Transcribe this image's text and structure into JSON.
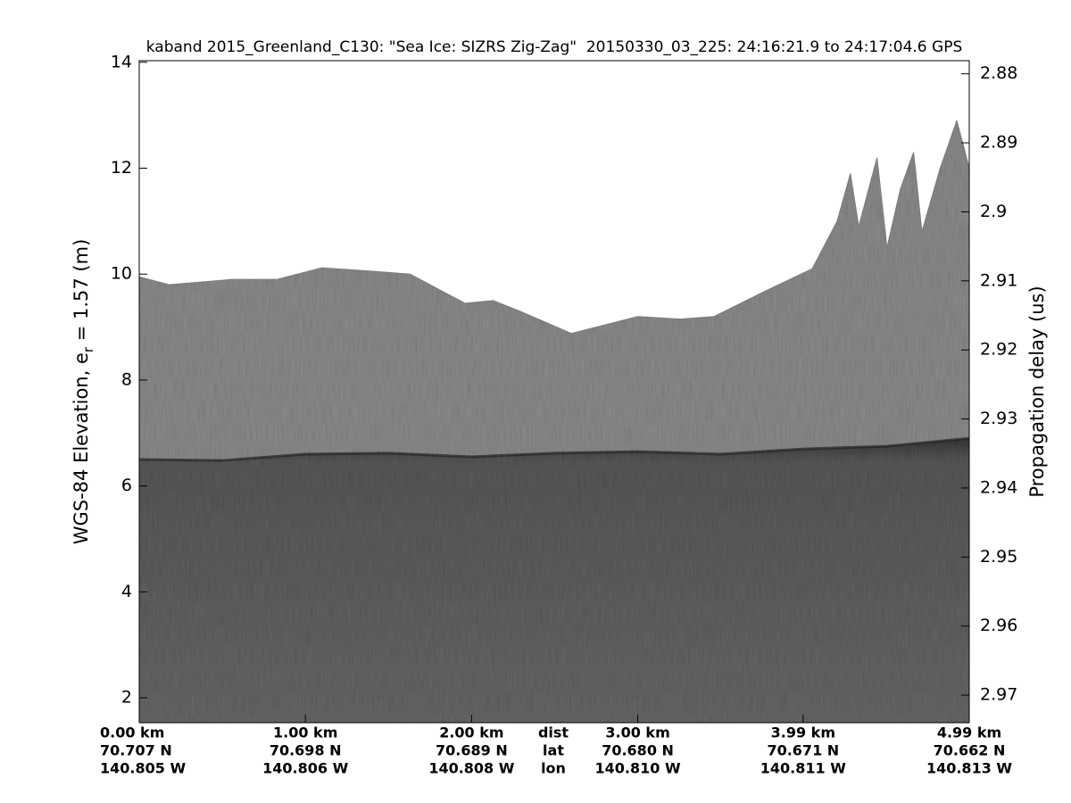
{
  "chart_data": {
    "type": "echogram",
    "title": "kaband 2015_Greenland_C130: \"Sea Ice: SIZRS Zig-Zag\"  20150330_03_225: 24:16:21.9 to 24:17:04.6 GPS",
    "ylabel": {
      "main": "WGS-84 Elevation, e",
      "subscript": "r",
      "rest": " = 1.57 (m)"
    },
    "y2label": "Propagation delay (us)",
    "xlim": [
      0,
      4.995
    ],
    "xticks": [
      {
        "value": 0,
        "label": "0.00 km"
      },
      {
        "value": 1.0,
        "label": "1.00 km"
      },
      {
        "value": 2.0,
        "label": "2.00 km"
      },
      {
        "value": 3.0,
        "label": "3.00 km"
      },
      {
        "value": 3.995,
        "label": "3.99 km"
      },
      {
        "value": 4.995,
        "label": "4.99 km"
      }
    ],
    "lat_labels": [
      "70.707 N",
      "70.698 N",
      "70.689 N",
      "70.680 N",
      "70.671 N",
      "70.662 N"
    ],
    "lon_labels": [
      "140.805 W",
      "140.806 W",
      "140.808 W",
      "140.810 W",
      "140.811 W",
      "140.813 W"
    ],
    "row_labels": [
      "dist",
      "lat",
      "lon"
    ],
    "ylim": [
      1.53,
      14.03
    ],
    "yticks": [
      2,
      4,
      6,
      8,
      10,
      12,
      14
    ],
    "y2lim": [
      2.8781,
      2.974
    ],
    "y2reverse": true,
    "y2ticks": [
      2.88,
      2.89,
      2.9,
      2.91,
      2.92,
      2.93,
      2.94,
      2.95,
      2.96,
      2.97
    ],
    "surface": {
      "x": [
        0,
        0.18,
        0.56,
        0.83,
        1.1,
        1.42,
        1.63,
        1.96,
        2.13,
        2.29,
        2.6,
        3.0,
        3.25,
        3.46,
        3.78,
        4.05,
        4.2,
        4.28,
        4.33,
        4.44,
        4.5,
        4.58,
        4.66,
        4.71,
        4.82,
        4.92,
        4.995
      ],
      "values": [
        9.95,
        9.8,
        9.9,
        9.9,
        10.12,
        10.05,
        10.0,
        9.45,
        9.5,
        9.3,
        8.88,
        9.2,
        9.15,
        9.2,
        9.7,
        10.1,
        11.0,
        11.9,
        10.9,
        12.2,
        10.5,
        11.6,
        12.3,
        10.8,
        12.0,
        12.9,
        12.0
      ]
    },
    "interface": {
      "x": [
        0,
        0.5,
        1.0,
        1.5,
        2.0,
        2.5,
        3.0,
        3.5,
        4.0,
        4.5,
        4.995
      ],
      "values": [
        6.5,
        6.48,
        6.6,
        6.62,
        6.55,
        6.62,
        6.65,
        6.6,
        6.7,
        6.75,
        6.9
      ]
    }
  }
}
